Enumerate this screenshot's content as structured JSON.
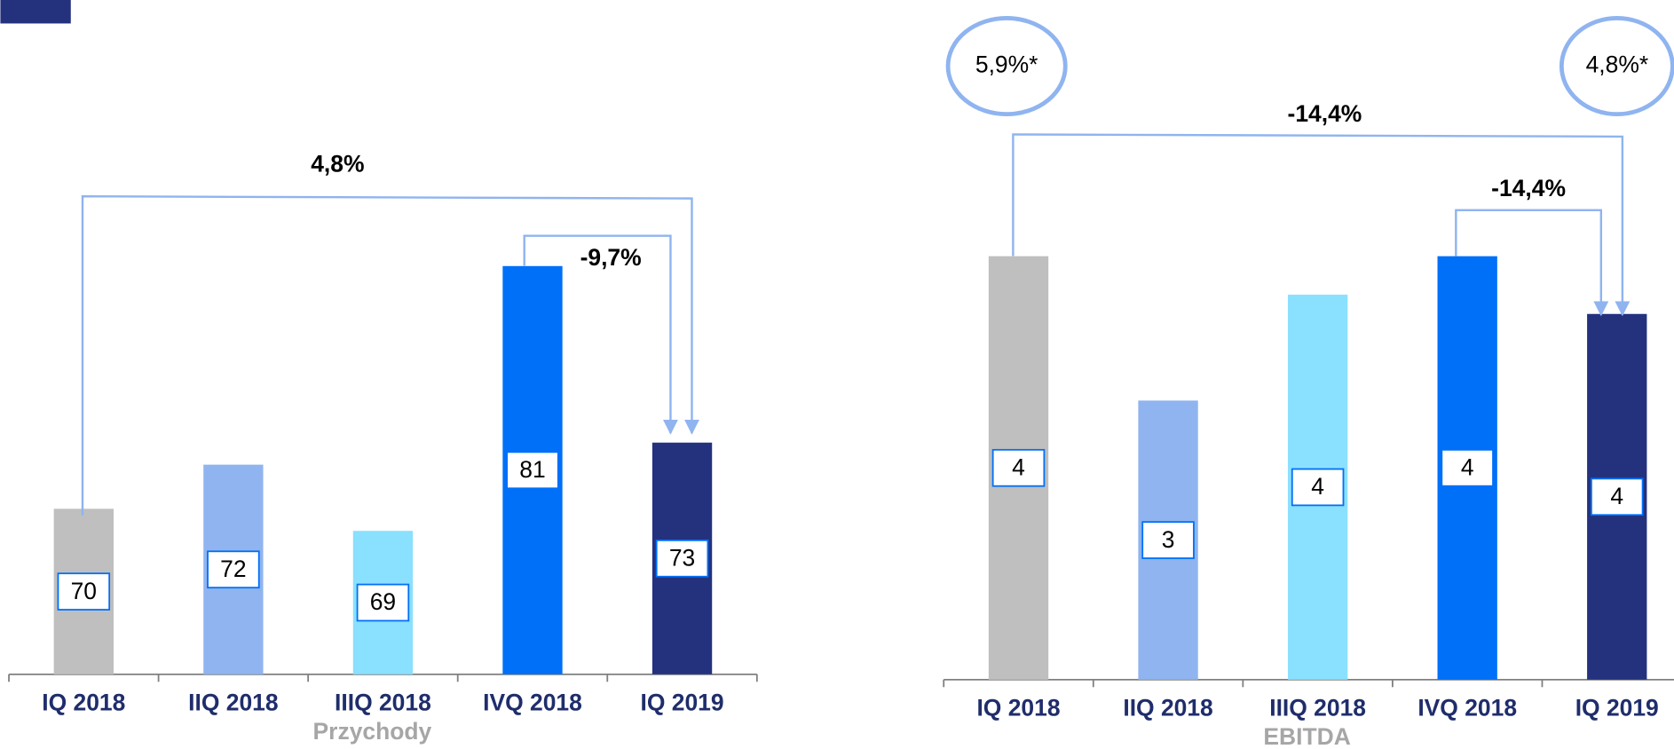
{
  "chart_data": [
    {
      "type": "bar",
      "title": "Przychody",
      "categories": [
        "IQ 2018",
        "IIQ 2018",
        "IIIQ 2018",
        "IVQ 2018",
        "IQ 2019"
      ],
      "values": [
        70,
        72,
        69,
        81,
        73
      ],
      "colors": [
        "#bfbfbf",
        "#8fb4f0",
        "#8ae0ff",
        "#0070f8",
        "#24327e"
      ],
      "ylim": [
        62.5,
        83
      ],
      "annotations": [
        "4,8%",
        "-9,7%"
      ]
    },
    {
      "type": "bar",
      "title": "EBITDA",
      "categories": [
        "IQ 2018",
        "IIQ 2018",
        "IIIQ 2018",
        "IVQ 2018",
        "IQ 2019"
      ],
      "values": [
        4.4,
        2.9,
        4.0,
        4.4,
        3.8
      ],
      "value_labels": [
        "4",
        "3",
        "4",
        "4",
        "4"
      ],
      "colors": [
        "#bfbfbf",
        "#8fb4f0",
        "#8ae0ff",
        "#0070f8",
        "#24327e"
      ],
      "ylim": [
        0,
        5
      ],
      "annotations": [
        "-14,4%",
        "-14,4%"
      ],
      "circle_labels": [
        "5,9%*",
        "4,8%*"
      ]
    }
  ]
}
